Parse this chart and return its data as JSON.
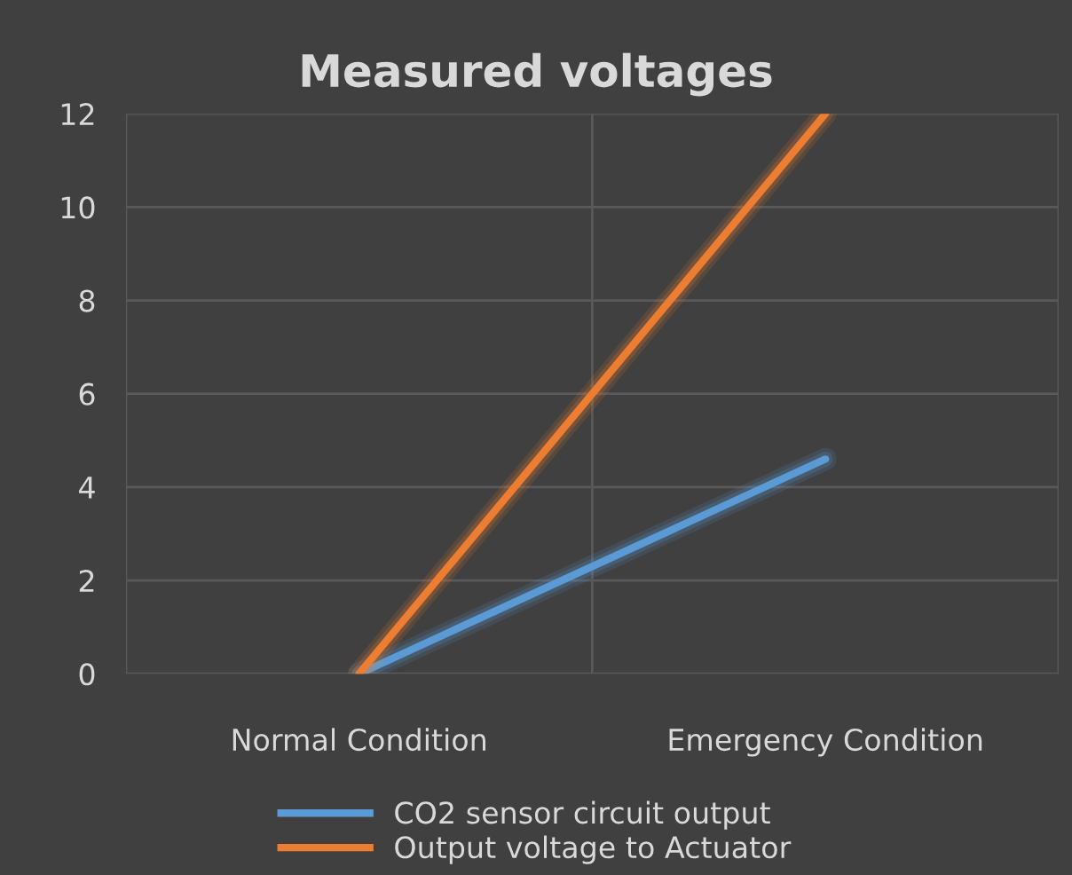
{
  "chart_data": {
    "type": "line",
    "title": "Measured voltages",
    "categories": [
      "Normal Condition",
      "Emergency Condition"
    ],
    "series": [
      {
        "name": "CO2 sensor circuit output",
        "color": "#5b9bd5",
        "values": [
          0,
          4.6
        ]
      },
      {
        "name": "Output voltage to Actuator",
        "color": "#ed7d31",
        "values": [
          0,
          12
        ]
      }
    ],
    "ylim": [
      0,
      12
    ],
    "yticks": [
      0,
      2,
      4,
      6,
      8,
      10,
      12
    ],
    "grid": true,
    "legend": "bottom",
    "marker": "none",
    "line_style": "solid"
  }
}
